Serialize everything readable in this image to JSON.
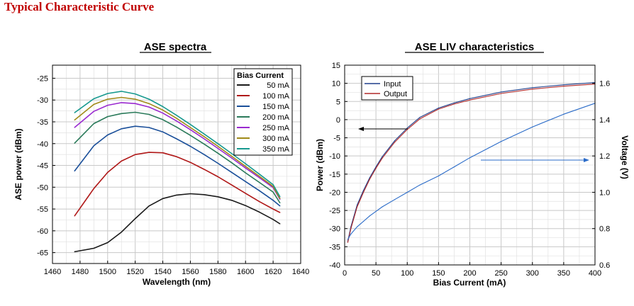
{
  "page": {
    "title": "Typical Characteristic Curve"
  },
  "colors": {
    "title": "#c00000",
    "grid": "#c8c8c8",
    "input": "#1f3f8a",
    "output": "#b02828",
    "voltage": "#2a6bc8"
  },
  "chart_data": [
    {
      "type": "line",
      "title": "ASE spectra",
      "xlabel": "Wavelength (nm)",
      "ylabel": "ASE power (dBm)",
      "xlim": [
        1460,
        1640
      ],
      "ylim": [
        -67.5,
        -22
      ],
      "x_ticks": [
        1460,
        1480,
        1500,
        1520,
        1540,
        1560,
        1580,
        1600,
        1620,
        1640
      ],
      "y_ticks": [
        -65,
        -60,
        -55,
        -50,
        -45,
        -40,
        -35,
        -30,
        -25
      ],
      "grid": true,
      "legend_title": "Bias Current",
      "legend_position": "top-right",
      "x": [
        1476,
        1490,
        1500,
        1510,
        1520,
        1530,
        1540,
        1550,
        1560,
        1570,
        1580,
        1590,
        1600,
        1610,
        1620,
        1625
      ],
      "series": [
        {
          "name": "50 mA",
          "color": "#1a1a1a",
          "values": [
            -64.8,
            -64.0,
            -62.7,
            -60.3,
            -57.2,
            -54.3,
            -52.6,
            -51.8,
            -51.5,
            -51.7,
            -52.2,
            -53.0,
            -54.2,
            -55.7,
            -57.4,
            -58.4
          ]
        },
        {
          "name": "100 mA",
          "color": "#b01818",
          "values": [
            -56.6,
            -50.3,
            -46.6,
            -44.0,
            -42.5,
            -42.0,
            -42.1,
            -43.0,
            -44.3,
            -45.9,
            -47.6,
            -49.5,
            -51.4,
            -53.3,
            -55.0,
            -55.8
          ]
        },
        {
          "name": "150 mA",
          "color": "#1a4f9a",
          "values": [
            -46.3,
            -40.5,
            -38.0,
            -36.6,
            -36.0,
            -36.3,
            -37.3,
            -38.9,
            -40.6,
            -42.5,
            -44.5,
            -46.6,
            -48.7,
            -50.8,
            -53.0,
            -54.3
          ]
        },
        {
          "name": "200 mA",
          "color": "#2a7a5a",
          "values": [
            -39.9,
            -35.4,
            -33.8,
            -33.1,
            -32.8,
            -33.3,
            -34.5,
            -36.2,
            -38.1,
            -40.1,
            -42.2,
            -44.4,
            -46.7,
            -48.9,
            -51.1,
            -53.6
          ]
        },
        {
          "name": "250 mA",
          "color": "#9a2ad0",
          "values": [
            -36.3,
            -32.6,
            -31.2,
            -30.6,
            -30.8,
            -31.6,
            -33.0,
            -34.8,
            -36.8,
            -38.9,
            -41.1,
            -43.3,
            -45.6,
            -47.8,
            -50.1,
            -52.8
          ]
        },
        {
          "name": "300 mA",
          "color": "#a08a18",
          "values": [
            -34.6,
            -31.0,
            -29.8,
            -29.4,
            -29.8,
            -30.8,
            -32.3,
            -34.2,
            -36.3,
            -38.4,
            -40.6,
            -42.9,
            -45.2,
            -47.5,
            -49.8,
            -52.6
          ]
        },
        {
          "name": "350 mA",
          "color": "#17998f",
          "values": [
            -32.9,
            -29.7,
            -28.5,
            -28.0,
            -28.6,
            -29.8,
            -31.5,
            -33.5,
            -35.6,
            -37.8,
            -40.0,
            -42.3,
            -44.6,
            -47.0,
            -49.4,
            -52.2
          ]
        }
      ]
    },
    {
      "type": "line",
      "title": "ASE LIV characteristics",
      "xlabel": "Bias Current (mA)",
      "ylabel": "Power (dBm)",
      "y2label": "Voltage (V)",
      "xlim": [
        0,
        400
      ],
      "ylim": [
        -40,
        15
      ],
      "y2lim": [
        0.6,
        1.7
      ],
      "x_ticks": [
        0,
        50,
        100,
        150,
        200,
        250,
        300,
        350,
        400
      ],
      "y_ticks": [
        -40,
        -35,
        -30,
        -25,
        -20,
        -15,
        -10,
        -5,
        0,
        5,
        10,
        15
      ],
      "y2_ticks": [
        0.6,
        0.8,
        1.0,
        1.2,
        1.4,
        1.6
      ],
      "grid": true,
      "legend_position": "top-left",
      "x": [
        5,
        10,
        20,
        30,
        40,
        50,
        60,
        80,
        100,
        120,
        150,
        175,
        200,
        250,
        300,
        350,
        400
      ],
      "series": [
        {
          "name": "Input",
          "axis": "left",
          "color": "#1f3f8a",
          "values": [
            -33.5,
            -29.5,
            -23.5,
            -19.5,
            -16.0,
            -13.0,
            -10.2,
            -5.8,
            -2.3,
            0.6,
            3.2,
            4.6,
            5.8,
            7.6,
            8.8,
            9.6,
            10.2
          ]
        },
        {
          "name": "Output",
          "axis": "left",
          "color": "#b02828",
          "values": [
            -33.8,
            -30.0,
            -24.0,
            -20.0,
            -16.4,
            -13.4,
            -10.6,
            -6.2,
            -2.7,
            0.2,
            2.9,
            4.3,
            5.4,
            7.2,
            8.4,
            9.2,
            9.8
          ]
        },
        {
          "name": "Voltage",
          "axis": "right",
          "color": "#2a6bc8",
          "values": [
            0.74,
            0.77,
            0.81,
            0.84,
            0.87,
            0.895,
            0.92,
            0.96,
            1.0,
            1.04,
            1.09,
            1.14,
            1.19,
            1.28,
            1.36,
            1.43,
            1.49
          ]
        }
      ]
    }
  ]
}
